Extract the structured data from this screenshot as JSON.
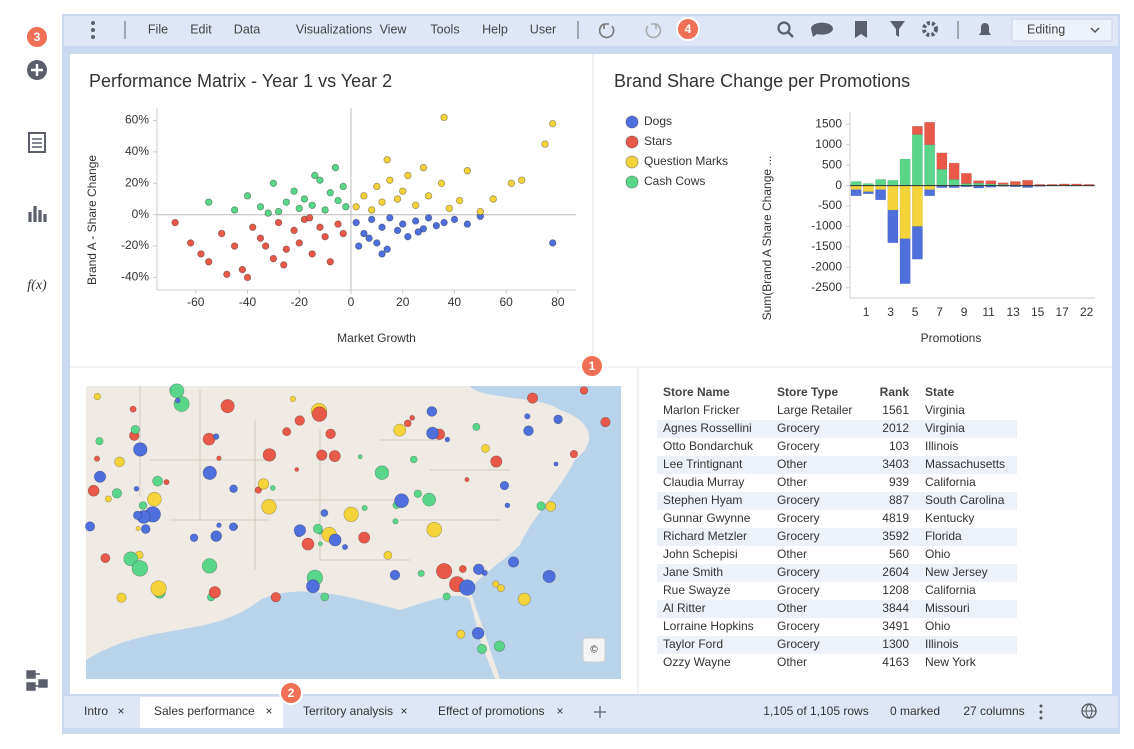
{
  "toolbar": {
    "menu": [
      "File",
      "Edit",
      "Data",
      "Visualizations",
      "View",
      "Tools",
      "Help",
      "User"
    ],
    "mode": "Editing"
  },
  "badges": [
    "1",
    "2",
    "3",
    "4"
  ],
  "sidebar": {
    "function_icon": "f(x)"
  },
  "scatter_chart": {
    "type": "scatter",
    "title": "Performance Matrix - Year 1 vs Year 2",
    "x_label": "Market Growth",
    "y_label": "Brand A - Share Change",
    "xlim": [
      -75,
      87
    ],
    "ylim": [
      -48,
      68
    ],
    "xticks": [
      -60,
      -40,
      -20,
      0,
      20,
      40,
      60,
      80
    ],
    "yticks": [
      {
        "value": 60,
        "label": "60%"
      },
      {
        "value": 40,
        "label": "40%"
      },
      {
        "value": 20,
        "label": "20%"
      },
      {
        "value": 0,
        "label": "0%"
      },
      {
        "value": -20,
        "label": "-20%"
      },
      {
        "value": -40,
        "label": "-40%"
      }
    ],
    "series": [
      {
        "color": "#4f6fdc",
        "x": [
          2,
          5,
          8,
          10,
          12,
          15,
          18,
          20,
          22,
          25,
          28,
          30,
          33,
          36,
          40,
          45,
          50,
          3,
          7,
          14,
          78,
          12,
          26
        ],
        "values": [
          -5,
          -12,
          -3,
          -18,
          -8,
          -2,
          -10,
          -6,
          -14,
          -4,
          -9,
          -2,
          -7,
          -5,
          -3,
          -6,
          -1,
          -20,
          -15,
          -22,
          -18,
          -25,
          -11
        ]
      },
      {
        "color": "#e8594a",
        "x": [
          -68,
          -62,
          -58,
          -55,
          -50,
          -45,
          -42,
          -38,
          -35,
          -30,
          -28,
          -25,
          -22,
          -20,
          -18,
          -15,
          -12,
          -10,
          -8,
          -5,
          -3,
          -48,
          -40,
          -33,
          -26,
          -16
        ],
        "values": [
          -5,
          -18,
          -25,
          -30,
          -12,
          -20,
          -35,
          -8,
          -15,
          -28,
          -5,
          -22,
          -10,
          -18,
          -3,
          -25,
          -8,
          -14,
          -30,
          -6,
          -12,
          -38,
          -40,
          -20,
          -32,
          -2
        ]
      },
      {
        "color": "#f5d33a",
        "x": [
          2,
          5,
          8,
          10,
          12,
          15,
          18,
          20,
          22,
          25,
          28,
          30,
          35,
          38,
          42,
          45,
          50,
          55,
          62,
          66,
          75,
          78,
          36,
          14
        ],
        "values": [
          5,
          12,
          3,
          18,
          8,
          22,
          10,
          15,
          25,
          6,
          30,
          12,
          20,
          4,
          9,
          28,
          2,
          10,
          20,
          22,
          45,
          58,
          62,
          35
        ]
      },
      {
        "color": "#5ad68a",
        "x": [
          -55,
          -45,
          -40,
          -35,
          -30,
          -28,
          -25,
          -22,
          -20,
          -18,
          -15,
          -12,
          -10,
          -8,
          -5,
          -3,
          -2,
          -32,
          -14,
          -6
        ],
        "values": [
          8,
          3,
          12,
          5,
          20,
          2,
          8,
          15,
          4,
          10,
          6,
          22,
          3,
          14,
          9,
          18,
          5,
          1,
          25,
          30
        ]
      }
    ]
  },
  "bar_chart": {
    "type": "bar",
    "stacked": true,
    "title": "Brand Share Change per Promotions",
    "x_label": "Promotions",
    "y_label": "Sum(Brand A Share Change ...",
    "legend": "left",
    "categories": [
      "1",
      null,
      "3",
      null,
      "5",
      null,
      "7",
      null,
      "9",
      null,
      "11",
      null,
      "13",
      null,
      "15",
      null,
      "17",
      null,
      "22",
      null
    ],
    "ylim": [
      -2750,
      1800
    ],
    "yticks": [
      1500,
      1000,
      500,
      0,
      -500,
      -1000,
      -1500,
      -2000,
      -2500
    ],
    "series": [
      {
        "name": "Dogs",
        "color": "#4f6fdc",
        "values": [
          -150,
          -50,
          -250,
          -800,
          -1100,
          -800,
          -150,
          -50,
          -50,
          -30,
          -60,
          -40,
          -20,
          -30,
          -50,
          -20,
          -10,
          -10,
          -10,
          -10
        ]
      },
      {
        "name": "Stars",
        "color": "#e8594a",
        "values": [
          0,
          0,
          0,
          0,
          0,
          200,
          550,
          400,
          400,
          250,
          60,
          80,
          40,
          80,
          120,
          20,
          20,
          30,
          30,
          20
        ]
      },
      {
        "name": "Question Marks",
        "color": "#f5d33a",
        "values": [
          -100,
          -150,
          -100,
          -600,
          -1300,
          -1000,
          -100,
          0,
          0,
          0,
          0,
          0,
          0,
          0,
          0,
          0,
          0,
          0,
          0,
          0
        ]
      },
      {
        "name": "Cash Cows",
        "color": "#5ad68a",
        "values": [
          100,
          50,
          150,
          130,
          650,
          1250,
          1000,
          400,
          150,
          50,
          60,
          40,
          30,
          20,
          10,
          10,
          10,
          10,
          10,
          10
        ]
      }
    ]
  },
  "table": {
    "columns": [
      "Store Name",
      "Store Type",
      "Rank",
      "State"
    ],
    "rows": [
      [
        "Marlon Fricker",
        "Large Retailer",
        1561,
        "Virginia"
      ],
      [
        "Agnes Rossellini",
        "Grocery",
        2012,
        "Virginia"
      ],
      [
        "Otto Bondarchuk",
        "Grocery",
        103,
        "Illinois"
      ],
      [
        "Lee Trintignant",
        "Other",
        3403,
        "Massachusetts"
      ],
      [
        "Claudia Murray",
        "Other",
        939,
        "California"
      ],
      [
        "Stephen Hyam",
        "Grocery",
        887,
        "South Carolina"
      ],
      [
        "Gunnar Gwynne",
        "Grocery",
        4819,
        "Kentucky"
      ],
      [
        "Richard Metzler",
        "Grocery",
        3592,
        "Florida"
      ],
      [
        "John Schepisi",
        "Other",
        560,
        "Ohio"
      ],
      [
        "Jane Smith",
        "Grocery",
        2604,
        "New Jersey"
      ],
      [
        "Rue Swayze",
        "Grocery",
        1208,
        "California"
      ],
      [
        "Al Ritter",
        "Other",
        3844,
        "Missouri"
      ],
      [
        "Lorraine Hopkins",
        "Grocery",
        3491,
        "Ohio"
      ],
      [
        "Taylor Ford",
        "Grocery",
        1300,
        "Illinois"
      ],
      [
        "Ozzy Wayne",
        "Other",
        4163,
        "New York"
      ]
    ]
  },
  "status": {
    "tabs": [
      "Intro",
      "Sales performance",
      "Territory analysis",
      "Effect of promotions"
    ],
    "rows": "1,105 of 1,105 rows",
    "marked": "0 marked",
    "columns": "27 columns"
  }
}
